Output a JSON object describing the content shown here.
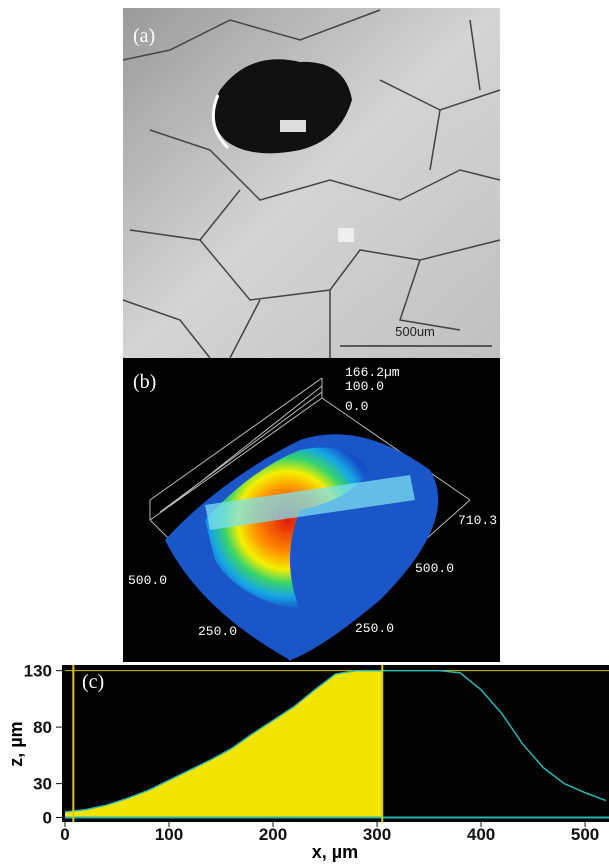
{
  "panels": {
    "a": {
      "label": "(a)",
      "scale_bar": "500um"
    },
    "b": {
      "label": "(b)",
      "z_max": "166.2µm",
      "z_mid": "100.0",
      "z_zero": "0.0",
      "x_end": "710.3",
      "x_mid": "500.0",
      "x_low": "250.0",
      "y_mid": "500.0",
      "y_low": "250.0"
    },
    "c": {
      "label": "(c)"
    }
  },
  "chart_data": {
    "type": "area",
    "x": [
      0,
      20,
      40,
      60,
      80,
      100,
      120,
      140,
      160,
      180,
      200,
      220,
      240,
      260,
      280,
      300,
      320,
      340,
      360,
      380,
      400,
      420,
      440,
      460,
      480,
      500,
      520
    ],
    "values": [
      5,
      7,
      11,
      17,
      24,
      33,
      42,
      51,
      61,
      74,
      86,
      98,
      113,
      127,
      130,
      130,
      130,
      130,
      130,
      128,
      113,
      92,
      65,
      44,
      30,
      22,
      15
    ],
    "color": "#f2e600",
    "line_color": "#2ab5b5",
    "cursor_color": "#d8c800",
    "cursor_x": [
      8,
      305
    ],
    "level_y": 130,
    "xlim": [
      0,
      523
    ],
    "ylim": [
      -4,
      135
    ],
    "xticks": [
      0,
      100,
      200,
      300,
      400,
      500
    ],
    "yticks": [
      0,
      30,
      80,
      130
    ],
    "xlabel": "x, µm",
    "ylabel": "z, µm"
  }
}
